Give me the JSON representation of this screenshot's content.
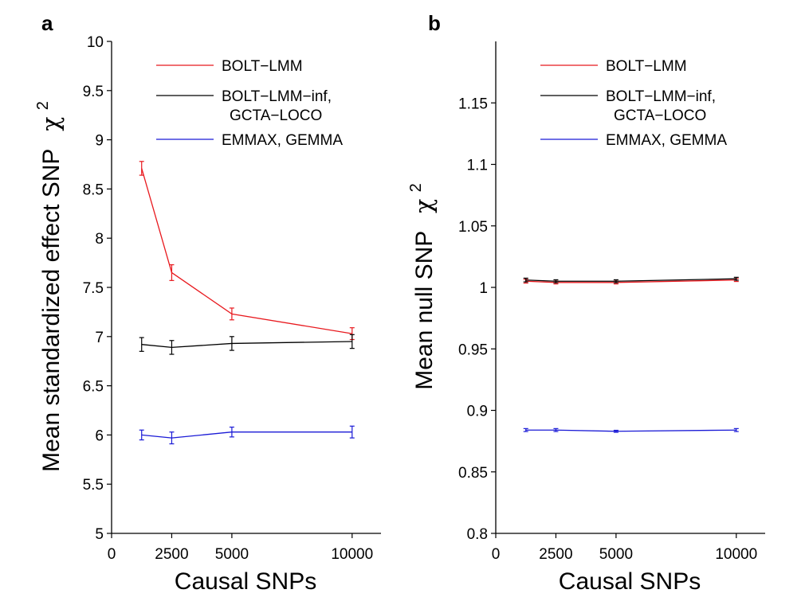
{
  "colors": {
    "bolt_lmm": "#e8191e",
    "bolt_lmm_inf": "#000000",
    "emmax": "#1a1ad6"
  },
  "chart_data": [
    {
      "type": "line",
      "panel_label": "a",
      "xlabel": "Causal SNPs",
      "ylabel_text": "Mean standardized effect SNP",
      "ylabel_symbol": "χ",
      "ylabel_sup": "2",
      "x_ticks": [
        0,
        2500,
        5000,
        10000
      ],
      "x_tick_labels": [
        "0",
        "2500",
        "5000",
        "10000"
      ],
      "xlim": [
        0,
        11200
      ],
      "ylim": [
        5,
        10
      ],
      "y_ticks": [
        5,
        5.5,
        6,
        6.5,
        7,
        7.5,
        8,
        8.5,
        9,
        9.5,
        10
      ],
      "y_tick_labels": [
        "5",
        "5.5",
        "6",
        "6.5",
        "7",
        "7.5",
        "8",
        "8.5",
        "9",
        "9.5",
        "10"
      ],
      "grid": false,
      "legend_position": "top-right",
      "x": [
        1250,
        2500,
        5000,
        10000
      ],
      "series": [
        {
          "name": "BOLT−LMM",
          "name_lines": [
            "BOLT−LMM"
          ],
          "color": "#e8191e",
          "values": [
            8.71,
            7.65,
            7.23,
            7.03
          ],
          "errors": [
            0.07,
            0.08,
            0.06,
            0.06
          ]
        },
        {
          "name": "BOLT−LMM−inf, GCTA−LOCO",
          "name_lines": [
            "BOLT−LMM−inf,",
            "GCTA−LOCO"
          ],
          "color": "#000000",
          "values": [
            6.92,
            6.89,
            6.93,
            6.95
          ],
          "errors": [
            0.07,
            0.07,
            0.07,
            0.07
          ]
        },
        {
          "name": "EMMAX, GEMMA",
          "name_lines": [
            "EMMAX, GEMMA"
          ],
          "color": "#1a1ad6",
          "values": [
            6.0,
            5.97,
            6.03,
            6.03
          ],
          "errors": [
            0.05,
            0.06,
            0.05,
            0.06
          ]
        }
      ]
    },
    {
      "type": "line",
      "panel_label": "b",
      "xlabel": "Causal SNPs",
      "ylabel_text": "Mean null SNP",
      "ylabel_symbol": "χ",
      "ylabel_sup": "2",
      "x_ticks": [
        0,
        2500,
        5000,
        10000
      ],
      "x_tick_labels": [
        "0",
        "2500",
        "5000",
        "10000"
      ],
      "xlim": [
        0,
        11200
      ],
      "ylim": [
        0.8,
        1.2
      ],
      "y_ticks": [
        0.8,
        0.85,
        0.9,
        0.95,
        1,
        1.05,
        1.1,
        1.15
      ],
      "y_tick_labels": [
        "0.8",
        "0.85",
        "0.9",
        "0.95",
        "1",
        "1.05",
        "1.1",
        "1.15"
      ],
      "grid": false,
      "legend_position": "top-right",
      "x": [
        1250,
        2500,
        5000,
        10000
      ],
      "series": [
        {
          "name": "BOLT−LMM",
          "name_lines": [
            "BOLT−LMM"
          ],
          "color": "#e8191e",
          "values": [
            1.005,
            1.004,
            1.004,
            1.006
          ],
          "errors": [
            0.0015,
            0.0012,
            0.0012,
            0.0012
          ]
        },
        {
          "name": "BOLT−LMM−inf, GCTA−LOCO",
          "name_lines": [
            "BOLT−LMM−inf,",
            "GCTA−LOCO"
          ],
          "color": "#000000",
          "values": [
            1.006,
            1.005,
            1.005,
            1.007
          ],
          "errors": [
            0.0015,
            0.0012,
            0.0012,
            0.0012
          ]
        },
        {
          "name": "EMMAX, GEMMA",
          "name_lines": [
            "EMMAX, GEMMA"
          ],
          "color": "#1a1ad6",
          "values": [
            0.884,
            0.884,
            0.883,
            0.884
          ],
          "errors": [
            0.0012,
            0.0012,
            0.0008,
            0.0012
          ]
        }
      ]
    }
  ]
}
